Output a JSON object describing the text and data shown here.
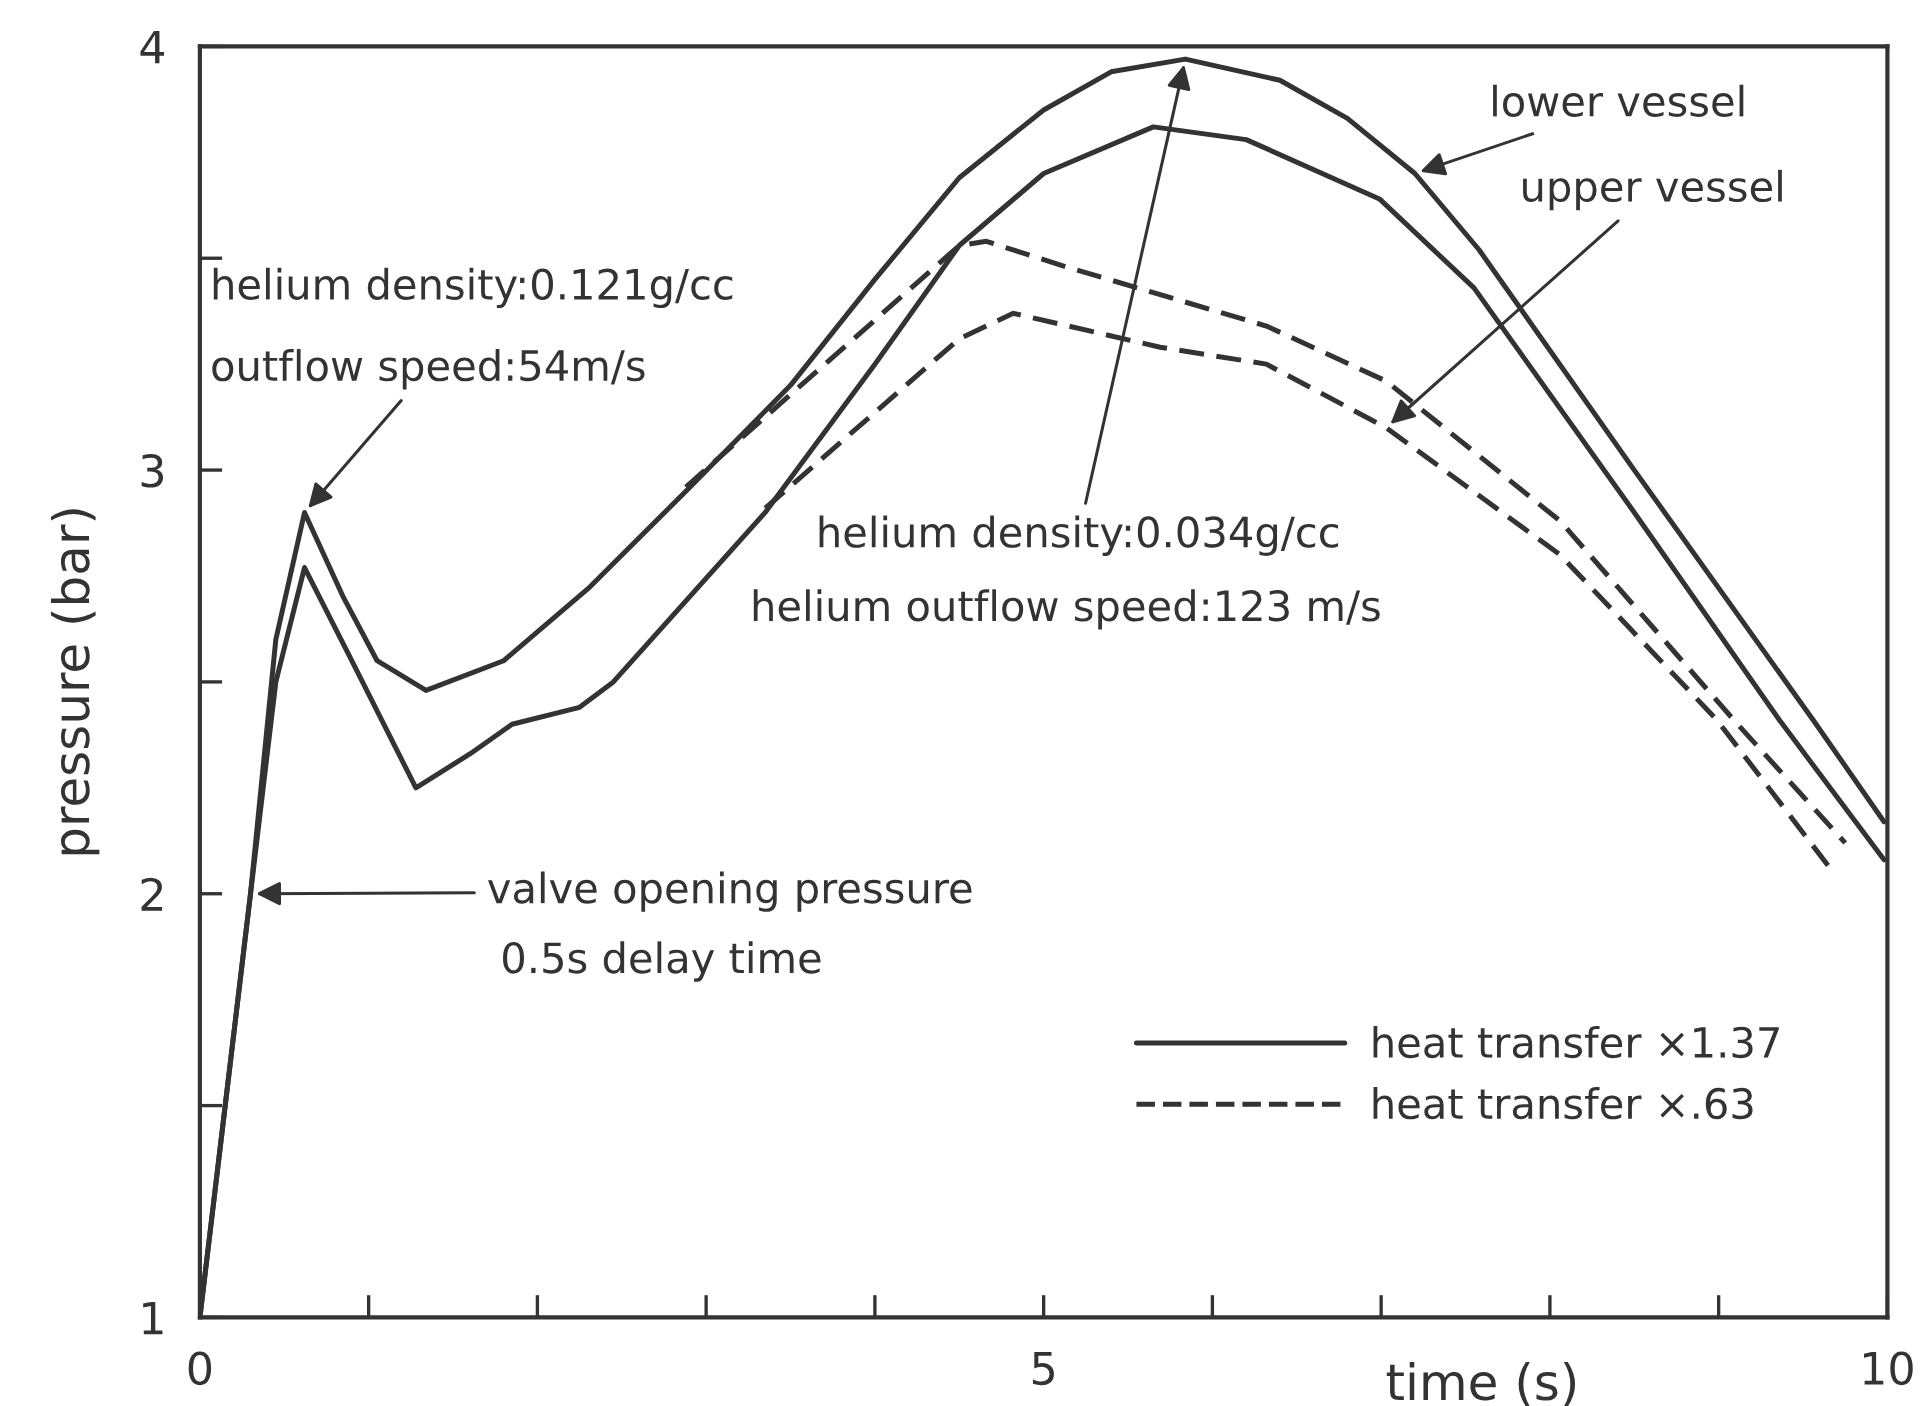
{
  "chart_data": {
    "type": "line",
    "xlabel": "time (s)",
    "ylabel": "pressure (bar)",
    "xlim": [
      0,
      10
    ],
    "ylim": [
      1,
      4
    ],
    "xticks": [
      0,
      {
        "value": 1,
        "label": null
      },
      {
        "value": 2,
        "label": null
      },
      {
        "value": 3,
        "label": null
      },
      {
        "value": 4,
        "label": null
      },
      5,
      {
        "value": 6,
        "label": null
      },
      {
        "value": 7,
        "label": null
      },
      {
        "value": 8,
        "label": null
      },
      {
        "value": 9,
        "label": null
      },
      10
    ],
    "yticks": [
      1,
      {
        "value": 1.5,
        "label": null
      },
      2,
      {
        "value": 2.5,
        "label": null
      },
      3,
      {
        "value": 3.5,
        "label": null
      },
      4
    ],
    "grid": false,
    "legend": "bottom right",
    "marker": "none",
    "series": [
      {
        "name": "heat transfer ×1.37",
        "color": "#333333",
        "line_style": "solid",
        "x": [
          0,
          0.15,
          0.3,
          0.45,
          0.62,
          0.85,
          1.05,
          1.34,
          1.8,
          2.3,
          2.88,
          3.5,
          4.0,
          4.5,
          5.0,
          5.4,
          5.84,
          6.4,
          6.8,
          7.2,
          7.58,
          8.5,
          9.56,
          9.98
        ],
        "values": [
          1,
          1.5,
          2.0,
          2.6,
          2.9,
          2.7,
          2.55,
          2.48,
          2.55,
          2.72,
          2.95,
          3.2,
          3.45,
          3.69,
          3.85,
          3.94,
          3.97,
          3.92,
          3.83,
          3.7,
          3.52,
          3.0,
          2.41,
          2.17
        ]
      },
      {
        "color": "#333333",
        "line_style": "solid",
        "x": [
          0,
          0.15,
          0.3,
          0.45,
          0.62,
          0.9,
          1.28,
          1.6,
          1.85,
          2.25,
          2.45,
          3.35,
          4.0,
          4.5,
          5.0,
          5.65,
          6.2,
          6.99,
          7.55,
          8.5,
          9.36,
          9.98
        ],
        "values": [
          1,
          1.5,
          2.0,
          2.5,
          2.77,
          2.55,
          2.25,
          2.33,
          2.4,
          2.44,
          2.5,
          2.9,
          3.25,
          3.53,
          3.7,
          3.81,
          3.78,
          3.64,
          3.43,
          2.9,
          2.41,
          2.08
        ]
      },
      {
        "name": "heat transfer ×.63",
        "color": "#333333",
        "line_style": "dashed",
        "x": [
          2.88,
          4.5,
          4.66,
          5.13,
          6.32,
          7.03,
          8.06,
          9.09,
          9.75
        ],
        "values": [
          2.96,
          3.53,
          3.54,
          3.48,
          3.34,
          3.21,
          2.88,
          2.41,
          2.12
        ]
      },
      {
        "color": "#333333",
        "line_style": "dashed",
        "x": [
          3.35,
          4.5,
          4.82,
          5.69,
          6.32,
          7.03,
          8.06,
          8.99,
          9.68
        ],
        "values": [
          2.91,
          3.31,
          3.37,
          3.29,
          3.25,
          3.1,
          2.8,
          2.41,
          2.05
        ]
      }
    ],
    "annotations": [
      "helium density:0.121g/cc",
      {
        "text": "outflow speed:54m/s",
        "x": 0.62,
        "y": 2.9
      },
      {
        "text": "valve opening pressure",
        "x": 0.3,
        "y": 2.0
      },
      "0.5s delay time",
      {
        "text": "helium density:0.034g/cc",
        "x": 5.84,
        "y": 3.97
      },
      "helium outflow speed:123 m/s",
      {
        "text": "lower vessel",
        "x": 7.2,
        "y": 3.7
      },
      {
        "text": "upper vessel",
        "x": 7.03,
        "y": 3.1
      }
    ]
  }
}
